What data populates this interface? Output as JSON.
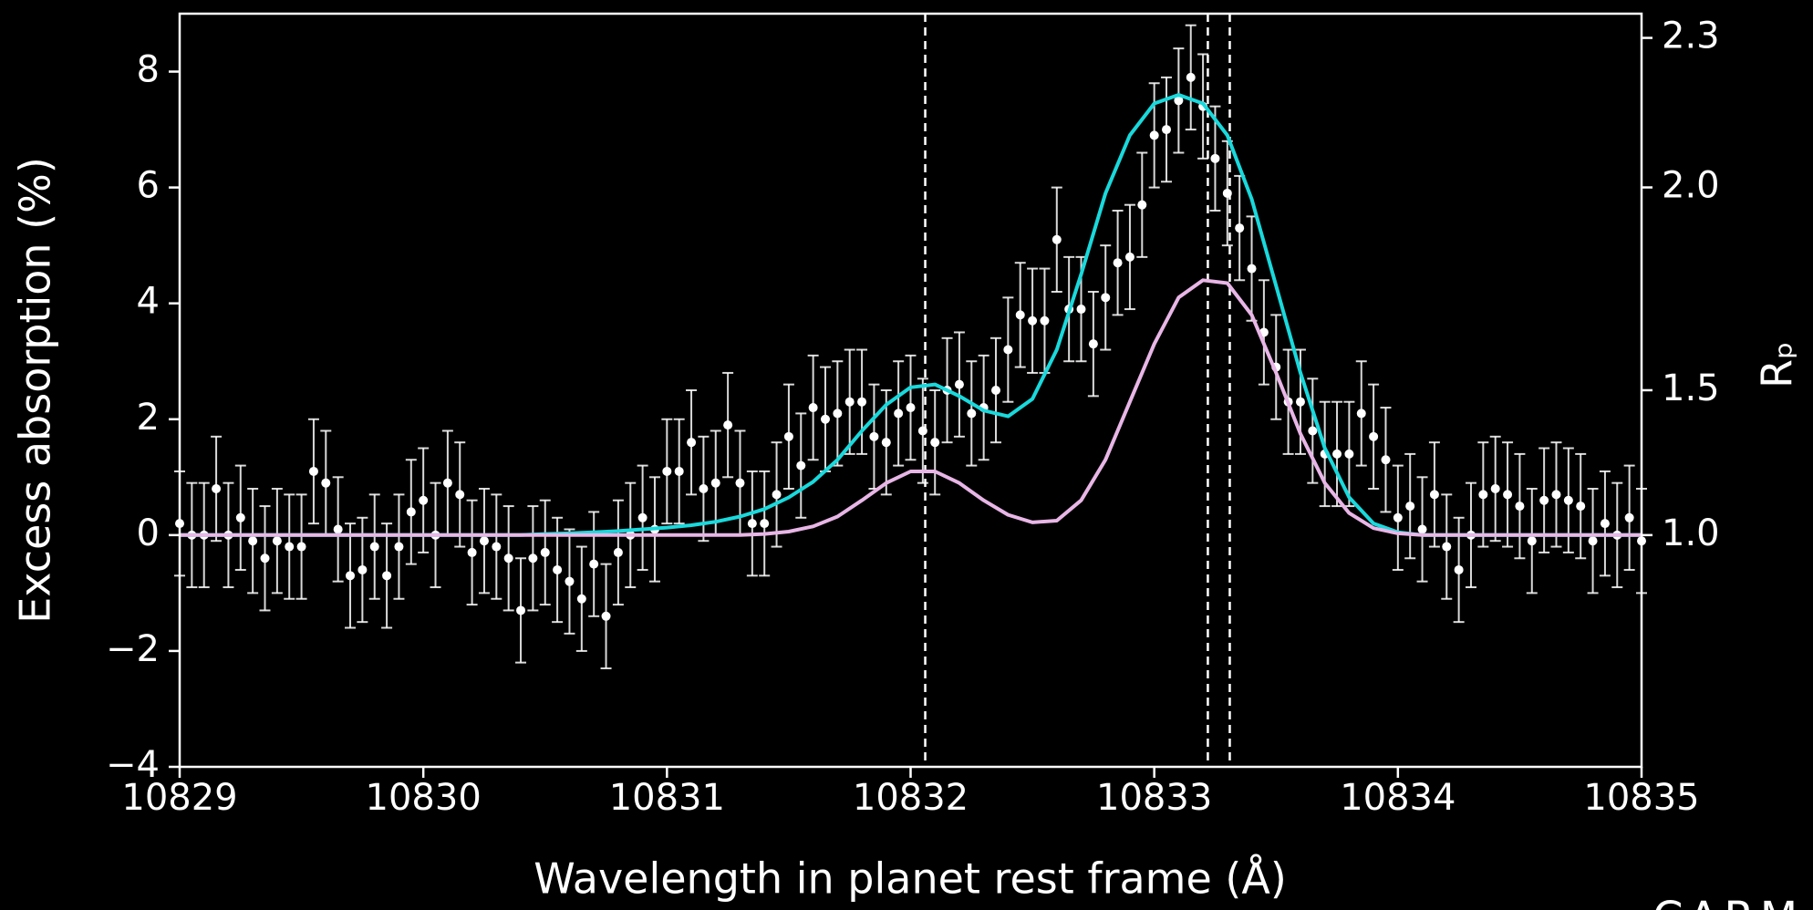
{
  "chart_data": {
    "type": "line",
    "x_label": "Wavelength in planet rest frame (Å)",
    "y_label": "Excess absorption (%)",
    "y2_label": "Rₚ",
    "watermark": "CARM",
    "xlim": [
      10829,
      10835
    ],
    "xticks": [
      10829,
      10830,
      10831,
      10832,
      10833,
      10834,
      10835
    ],
    "ylim": [
      -4,
      9
    ],
    "yticks": [
      {
        "value": -4,
        "label": "−4"
      },
      {
        "value": -2,
        "label": "−2"
      },
      0,
      2,
      4,
      6,
      8
    ],
    "y2scale": "square",
    "y2lim": [
      1,
      2.345
    ],
    "y2ticks": [
      {
        "value": 1,
        "label": "1.0"
      },
      {
        "value": 1.5,
        "label": "1.5"
      },
      {
        "value": 2,
        "label": "2.0"
      },
      {
        "value": 2.3,
        "label": "2.3"
      }
    ],
    "vlines": [
      10832.06,
      10833.22,
      10833.31
    ],
    "series": [
      {
        "type": "errorbar",
        "color": "#ffffff",
        "error": 0.9,
        "x": [
          10829.0,
          10829.05,
          10829.1,
          10829.15,
          10829.2,
          10829.25,
          10829.3,
          10829.35,
          10829.4,
          10829.45,
          10829.5,
          10829.55,
          10829.6,
          10829.65,
          10829.7,
          10829.75,
          10829.8,
          10829.85,
          10829.9,
          10829.95,
          10830.0,
          10830.05,
          10830.1,
          10830.15,
          10830.2,
          10830.25,
          10830.3,
          10830.35,
          10830.4,
          10830.45,
          10830.5,
          10830.55,
          10830.6,
          10830.65,
          10830.7,
          10830.75,
          10830.8,
          10830.85,
          10830.9,
          10830.95,
          10831.0,
          10831.05,
          10831.1,
          10831.15,
          10831.2,
          10831.25,
          10831.3,
          10831.35,
          10831.4,
          10831.45,
          10831.5,
          10831.55,
          10831.6,
          10831.65,
          10831.7,
          10831.75,
          10831.8,
          10831.85,
          10831.9,
          10831.95,
          10832.0,
          10832.05,
          10832.1,
          10832.15,
          10832.2,
          10832.25,
          10832.3,
          10832.35,
          10832.4,
          10832.45,
          10832.5,
          10832.55,
          10832.6,
          10832.65,
          10832.7,
          10832.75,
          10832.8,
          10832.85,
          10832.9,
          10832.95,
          10833.0,
          10833.05,
          10833.1,
          10833.15,
          10833.2,
          10833.25,
          10833.3,
          10833.35,
          10833.4,
          10833.45,
          10833.5,
          10833.55,
          10833.6,
          10833.65,
          10833.7,
          10833.75,
          10833.8,
          10833.85,
          10833.9,
          10833.95,
          10834.0,
          10834.05,
          10834.1,
          10834.15,
          10834.2,
          10834.25,
          10834.3,
          10834.35,
          10834.4,
          10834.45,
          10834.5,
          10834.55,
          10834.6,
          10834.65,
          10834.7,
          10834.75,
          10834.8,
          10834.85,
          10834.9,
          10834.95,
          10835.0
        ],
        "values": [
          0.2,
          0.0,
          0.0,
          0.8,
          0.0,
          0.3,
          -0.1,
          -0.4,
          -0.1,
          -0.2,
          -0.2,
          1.1,
          0.9,
          0.1,
          -0.7,
          -0.6,
          -0.2,
          -0.7,
          -0.2,
          0.4,
          0.6,
          0.0,
          0.9,
          0.7,
          -0.3,
          -0.1,
          -0.2,
          -0.4,
          -1.3,
          -0.4,
          -0.3,
          -0.6,
          -0.8,
          -1.1,
          -0.5,
          -1.4,
          -0.3,
          0.0,
          0.3,
          0.1,
          1.1,
          1.1,
          1.6,
          0.8,
          0.9,
          1.9,
          0.9,
          0.2,
          0.2,
          0.7,
          1.7,
          1.2,
          2.2,
          2.0,
          2.1,
          2.3,
          2.3,
          1.7,
          1.6,
          2.1,
          2.2,
          1.8,
          1.6,
          2.5,
          2.6,
          2.1,
          2.2,
          2.5,
          3.2,
          3.8,
          3.7,
          3.7,
          5.1,
          3.9,
          3.9,
          3.3,
          4.1,
          4.7,
          4.8,
          5.7,
          6.9,
          7.0,
          7.5,
          7.9,
          7.4,
          6.5,
          5.9,
          5.3,
          4.6,
          3.5,
          2.9,
          2.3,
          2.3,
          1.8,
          1.4,
          1.4,
          1.4,
          2.1,
          1.7,
          1.3,
          0.3,
          0.5,
          0.1,
          0.7,
          -0.2,
          -0.6,
          0.0,
          0.7,
          0.8,
          0.7,
          0.5,
          -0.1,
          0.6,
          0.7,
          0.6,
          0.5,
          -0.1,
          0.2,
          0.0,
          0.3,
          -0.1
        ]
      },
      {
        "type": "line",
        "color": "#19d9dc",
        "x": [
          10829.0,
          10829.1,
          10829.2,
          10829.3,
          10829.4,
          10829.5,
          10829.6,
          10829.7,
          10829.8,
          10829.9,
          10830.0,
          10830.1,
          10830.2,
          10830.3,
          10830.4,
          10830.5,
          10830.6,
          10830.7,
          10830.8,
          10830.9,
          10831.0,
          10831.1,
          10831.2,
          10831.3,
          10831.4,
          10831.5,
          10831.6,
          10831.7,
          10831.8,
          10831.9,
          10832.0,
          10832.1,
          10832.2,
          10832.3,
          10832.4,
          10832.5,
          10832.6,
          10832.7,
          10832.8,
          10832.9,
          10833.0,
          10833.1,
          10833.2,
          10833.3,
          10833.4,
          10833.5,
          10833.6,
          10833.7,
          10833.8,
          10833.9,
          10834.0,
          10834.1,
          10834.2,
          10834.3,
          10834.4,
          10834.5,
          10834.6,
          10834.7,
          10834.8,
          10834.9,
          10835.0
        ],
        "values": [
          0,
          0,
          0,
          0,
          0,
          0,
          0,
          0,
          0,
          0,
          0,
          0,
          0,
          0,
          0,
          0.02,
          0.03,
          0.05,
          0.07,
          0.1,
          0.13,
          0.17,
          0.23,
          0.32,
          0.45,
          0.65,
          0.92,
          1.3,
          1.8,
          2.25,
          2.55,
          2.6,
          2.4,
          2.15,
          2.05,
          2.35,
          3.2,
          4.5,
          5.9,
          6.9,
          7.45,
          7.6,
          7.45,
          6.9,
          5.8,
          4.3,
          2.8,
          1.5,
          0.65,
          0.2,
          0.05,
          0,
          0,
          0,
          0,
          0,
          0,
          0,
          0,
          0,
          0
        ]
      },
      {
        "type": "line",
        "color": "#e8b6e6",
        "x": [
          10829.0,
          10829.1,
          10829.2,
          10829.3,
          10829.4,
          10829.5,
          10829.6,
          10829.7,
          10829.8,
          10829.9,
          10830.0,
          10830.1,
          10830.2,
          10830.3,
          10830.4,
          10830.5,
          10830.6,
          10830.7,
          10830.8,
          10830.9,
          10831.0,
          10831.1,
          10831.2,
          10831.3,
          10831.4,
          10831.5,
          10831.6,
          10831.7,
          10831.8,
          10831.9,
          10832.0,
          10832.1,
          10832.2,
          10832.3,
          10832.4,
          10832.5,
          10832.6,
          10832.7,
          10832.8,
          10832.9,
          10833.0,
          10833.1,
          10833.2,
          10833.3,
          10833.4,
          10833.5,
          10833.6,
          10833.7,
          10833.8,
          10833.9,
          10834.0,
          10834.1,
          10834.2,
          10834.3,
          10834.4,
          10834.5,
          10834.6,
          10834.7,
          10834.8,
          10834.9,
          10835.0
        ],
        "values": [
          0,
          0,
          0,
          0,
          0,
          0,
          0,
          0,
          0,
          0,
          0,
          0,
          0,
          0,
          0,
          0,
          0,
          0,
          0,
          0,
          0,
          0,
          0,
          0,
          0.02,
          0.06,
          0.15,
          0.32,
          0.6,
          0.9,
          1.1,
          1.1,
          0.9,
          0.6,
          0.35,
          0.22,
          0.25,
          0.6,
          1.3,
          2.3,
          3.3,
          4.1,
          4.4,
          4.35,
          3.8,
          2.8,
          1.75,
          0.9,
          0.38,
          0.12,
          0.03,
          0,
          0,
          0,
          0,
          0,
          0,
          0,
          0,
          0,
          0
        ]
      }
    ]
  }
}
